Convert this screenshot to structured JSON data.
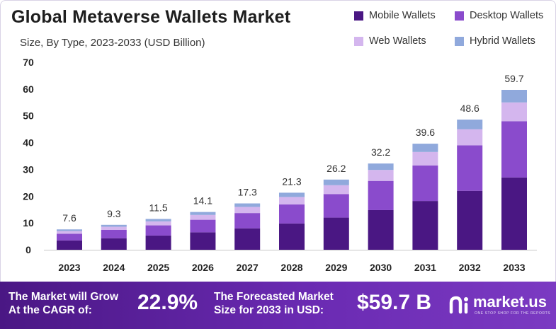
{
  "chart_data": {
    "type": "bar",
    "stacked": true,
    "title": "Global Metaverse Wallets Market",
    "subtitle": "Size, By Type, 2023-2033 (USD Billion)",
    "categories": [
      "2023",
      "2024",
      "2025",
      "2026",
      "2027",
      "2028",
      "2029",
      "2030",
      "2031",
      "2032",
      "2033"
    ],
    "totals": [
      7.6,
      9.3,
      11.5,
      14.1,
      17.3,
      21.3,
      26.2,
      32.2,
      39.6,
      48.6,
      59.7
    ],
    "total_labels": [
      "7.6",
      "9.3",
      "11.5",
      "14.1",
      "17.3",
      "21.3",
      "26.2",
      "32.2",
      "39.6",
      "48.6",
      "59.7"
    ],
    "series": [
      {
        "name": "Mobile Wallets",
        "color": "#4a1783",
        "values": [
          3.5,
          4.3,
          5.3,
          6.5,
          8.0,
          9.8,
          12.0,
          14.8,
          18.2,
          22.0,
          27.0
        ]
      },
      {
        "name": "Desktop Wallets",
        "color": "#8a4bcc",
        "values": [
          2.5,
          3.1,
          3.8,
          4.7,
          5.7,
          7.1,
          8.8,
          10.9,
          13.3,
          17.0,
          21.0
        ]
      },
      {
        "name": "Web Wallets",
        "color": "#d4b6ee",
        "values": [
          1.0,
          1.2,
          1.5,
          1.8,
          2.3,
          2.8,
          3.3,
          4.1,
          5.0,
          6.0,
          7.0
        ]
      },
      {
        "name": "Hybrid Wallets",
        "color": "#90a9dc",
        "values": [
          0.6,
          0.7,
          0.9,
          1.1,
          1.3,
          1.6,
          2.1,
          2.4,
          3.1,
          3.6,
          4.7
        ]
      }
    ],
    "yticks": [
      "0",
      "10",
      "20",
      "30",
      "40",
      "50",
      "60",
      "70"
    ],
    "ylim": [
      0,
      70
    ],
    "grid": false,
    "legend_position": "top-right"
  },
  "footer": {
    "cagr_label_line1": "The Market will Grow",
    "cagr_label_line2": "At the CAGR of:",
    "cagr_value": "22.9%",
    "forecast_label_line1": "The Forecasted Market",
    "forecast_label_line2": "Size for 2033 in USD:",
    "forecast_value": "$59.7 B",
    "brand": "market.us",
    "brand_tagline": "ONE STOP SHOP FOR THE REPORTS"
  }
}
